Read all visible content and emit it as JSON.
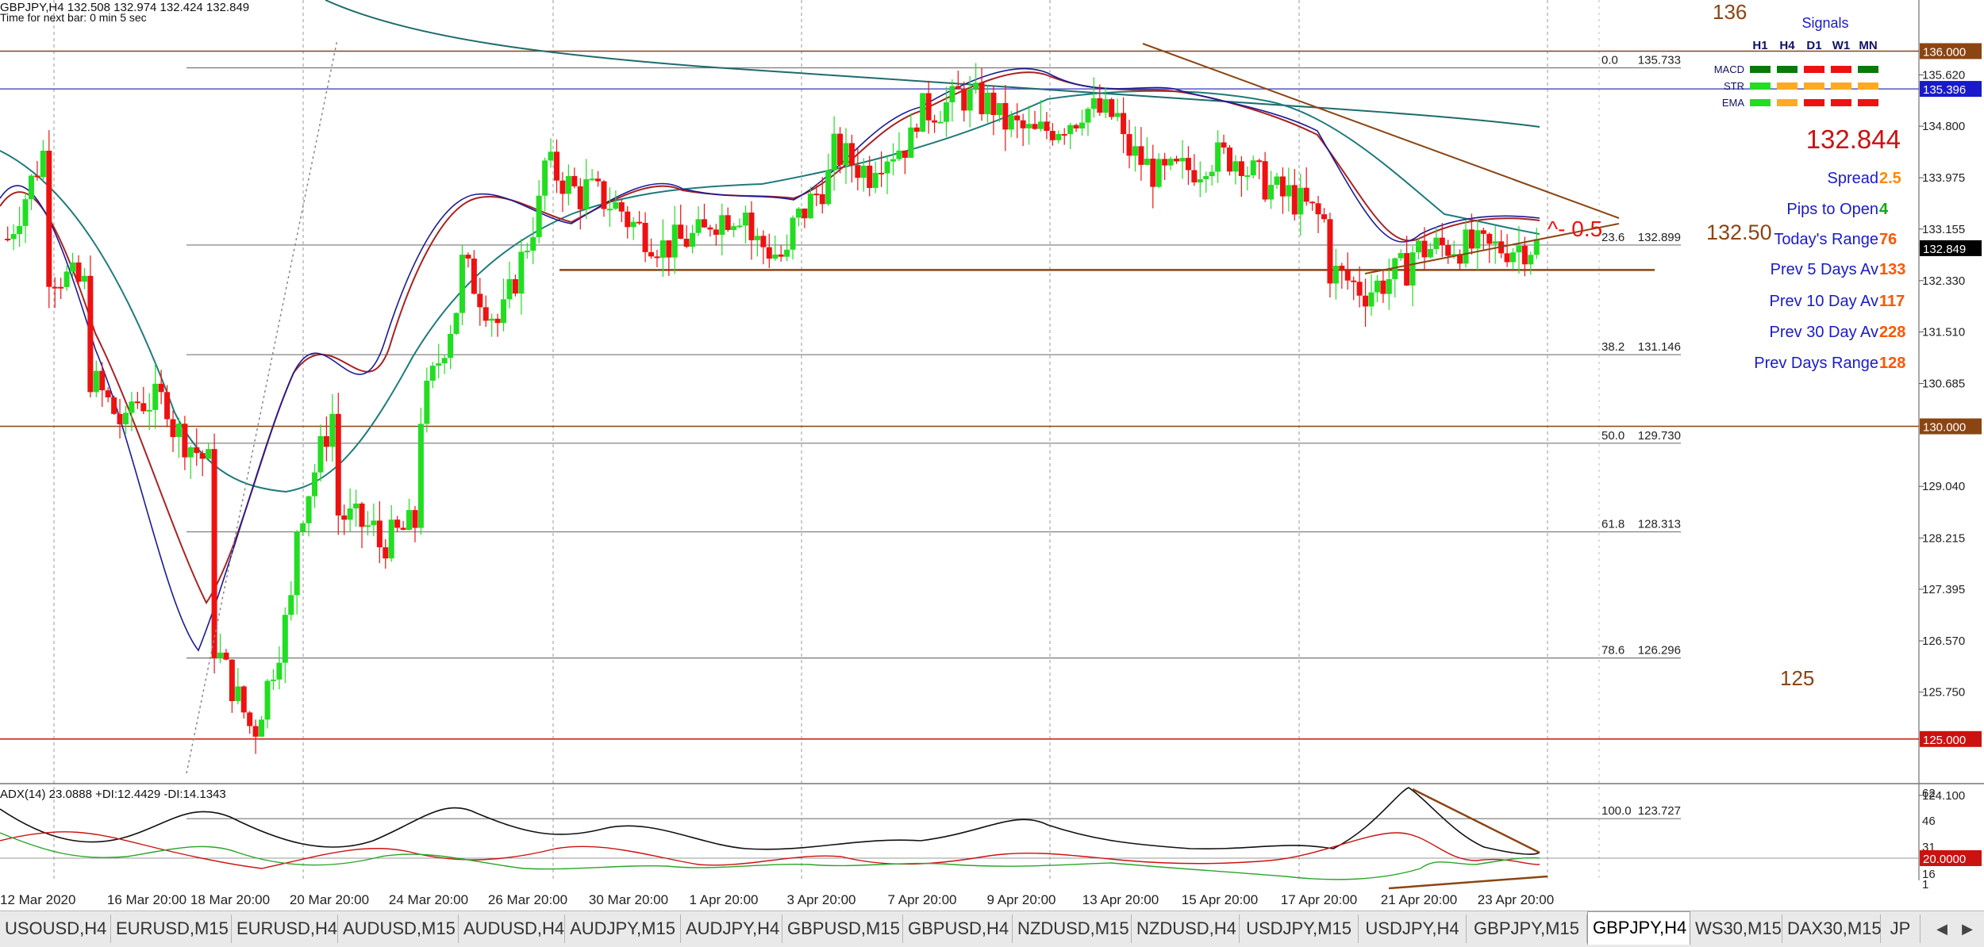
{
  "window": {
    "header_line1": "GBPJPY,H4  132.508 132.974 132.424 132.849",
    "header_line2": "Time for next bar: 0 min 5 sec"
  },
  "signals": {
    "title": "Signals",
    "timeframes": [
      "H1",
      "H4",
      "D1",
      "W1",
      "MN"
    ],
    "rows": [
      {
        "label": "MACD",
        "colors": [
          "#0a7a0a",
          "#0a7a0a",
          "#ee1111",
          "#ee1111",
          "#0a7a0a"
        ]
      },
      {
        "label": "STR",
        "colors": [
          "#22dd22",
          "#ffaa22",
          "#ffaa22",
          "#ffaa22",
          "#ffaa22"
        ]
      },
      {
        "label": "EMA",
        "colors": [
          "#22dd22",
          "#ffaa22",
          "#ee1111",
          "#ee1111",
          "#ee1111"
        ]
      }
    ]
  },
  "stats": {
    "price": "132.844",
    "spread_label": "Spread",
    "spread_value": "2.5",
    "pips_label": "Pips to Open",
    "pips_value": "4",
    "today_range_label": "Today's Range",
    "today_range_value": "76",
    "prev5_label": "Prev 5 Days Av",
    "prev5_value": "133",
    "prev10_label": "Prev 10 Day Av",
    "prev10_value": "117",
    "prev30_label": "Prev 30 Day Av",
    "prev30_value": "228",
    "prevdays_label": "Prev Days Range",
    "prevdays_value": "128"
  },
  "annotations": {
    "level_136": "136",
    "level_125": "125",
    "level_132_50": "132.50",
    "triangle_note": "^- 0.5"
  },
  "fib_levels": [
    {
      "pct": "0.0",
      "price": "135.733",
      "value": 135.733
    },
    {
      "pct": "23.6",
      "price": "132.899",
      "value": 132.899
    },
    {
      "pct": "38.2",
      "price": "131.146",
      "value": 131.146
    },
    {
      "pct": "50.0",
      "price": "129.730",
      "value": 129.73
    },
    {
      "pct": "61.8",
      "price": "128.313",
      "value": 128.313
    },
    {
      "pct": "78.6",
      "price": "126.296",
      "value": 126.296
    },
    {
      "pct": "100.0",
      "price": "123.727",
      "value": 123.727
    }
  ],
  "price_axis": {
    "ticks": [
      "135.620",
      "134.800",
      "133.975",
      "133.155",
      "132.330",
      "131.510",
      "130.685",
      "129.040",
      "128.215",
      "127.395",
      "126.570",
      "125.750",
      "124.100"
    ],
    "boxes": [
      {
        "label": "136.000",
        "value": 136.0,
        "bg": "#8b4513",
        "fg": "#ffffff"
      },
      {
        "label": "135.396",
        "value": 135.396,
        "bg": "#1a1acc",
        "fg": "#ffffff"
      },
      {
        "label": "132.849",
        "value": 132.849,
        "bg": "#000000",
        "fg": "#ffffff"
      },
      {
        "label": "130.000",
        "value": 130.0,
        "bg": "#8b4513",
        "fg": "#ffffff"
      },
      {
        "label": "125.000",
        "value": 125.0,
        "bg": "#cc1111",
        "fg": "#ffffff"
      }
    ]
  },
  "horizontal_lines": [
    {
      "value": 136.0,
      "color": "#8b4513"
    },
    {
      "value": 135.396,
      "color": "#5555cc"
    },
    {
      "value": 132.5,
      "color": "#8b4513"
    },
    {
      "value": 130.0,
      "color": "#8b4513"
    },
    {
      "value": 125.0,
      "color": "#cc1111"
    }
  ],
  "adx": {
    "label": "ADX(14) 23.0888 +DI:12.4429 -DI:14.1343",
    "ticks": [
      "62",
      "46",
      "31",
      "16",
      "1"
    ],
    "level_box": "20.0000"
  },
  "time_axis": [
    "12 Mar 2020",
    "16 Mar 20:00",
    "18 Mar 20:00",
    "20 Mar 20:00",
    "24 Mar 20:00",
    "26 Mar 20:00",
    "30 Mar 20:00",
    "1 Apr 20:00",
    "3 Apr 20:00",
    "7 Apr 20:00",
    "9 Apr 20:00",
    "13 Apr 20:00",
    "15 Apr 20:00",
    "17 Apr 20:00",
    "21 Apr 20:00",
    "23 Apr 20:00"
  ],
  "price_path": [
    [
      133.0,
      134.6
    ],
    [
      132.5,
      132.2
    ],
    [
      130.8,
      129.8
    ],
    [
      130.4,
      130.4
    ],
    [
      130.0,
      129.3
    ],
    [
      126.5,
      125.0
    ],
    [
      125.2,
      127.5
    ],
    [
      128.4,
      130.5
    ],
    [
      128.6,
      128.3
    ],
    [
      128.1,
      128.5
    ],
    [
      130.2,
      132.2
    ],
    [
      132.6,
      131.5
    ],
    [
      131.8,
      133.8
    ],
    [
      134.2,
      133.6
    ],
    [
      133.8,
      133.4
    ],
    [
      133.3,
      132.8
    ],
    [
      132.9,
      133.1
    ],
    [
      133.3,
      133.5
    ],
    [
      133.0,
      132.6
    ],
    [
      133.2,
      134.1
    ],
    [
      134.4,
      134.0
    ],
    [
      134.3,
      134.6
    ],
    [
      135.0,
      135.2
    ],
    [
      135.3,
      135.1
    ],
    [
      134.9,
      134.6
    ],
    [
      134.7,
      135.0
    ],
    [
      135.1,
      134.9
    ],
    [
      134.5,
      133.9
    ],
    [
      134.0,
      134.2
    ],
    [
      134.3,
      134.3
    ],
    [
      134.1,
      133.6
    ],
    [
      133.7,
      133.2
    ],
    [
      132.5,
      132.1
    ],
    [
      132.2,
      132.6
    ],
    [
      132.8,
      132.9
    ],
    [
      132.9,
      132.8
    ],
    [
      132.85,
      132.9
    ],
    [
      132.9,
      132.85
    ]
  ],
  "tabs": [
    {
      "label": "USOUSD,H4",
      "active": false
    },
    {
      "label": "EURUSD,M15",
      "active": false
    },
    {
      "label": "EURUSD,H4",
      "active": false
    },
    {
      "label": "AUDUSD,M15",
      "active": false
    },
    {
      "label": "AUDUSD,H4",
      "active": false
    },
    {
      "label": "AUDJPY,M15",
      "active": false
    },
    {
      "label": "AUDJPY,H4",
      "active": false
    },
    {
      "label": "GBPUSD,M15",
      "active": false
    },
    {
      "label": "GBPUSD,H4",
      "active": false
    },
    {
      "label": "NZDUSD,M15",
      "active": false
    },
    {
      "label": "NZDUSD,H4",
      "active": false
    },
    {
      "label": "USDJPY,M15",
      "active": false
    },
    {
      "label": "USDJPY,H4",
      "active": false
    },
    {
      "label": "GBPJPY,M15",
      "active": false
    },
    {
      "label": "GBPJPY,H4",
      "active": true
    },
    {
      "label": "WS30,M15",
      "active": false
    },
    {
      "label": "DAX30,M15",
      "active": false
    },
    {
      "label": "JP",
      "active": false
    }
  ]
}
